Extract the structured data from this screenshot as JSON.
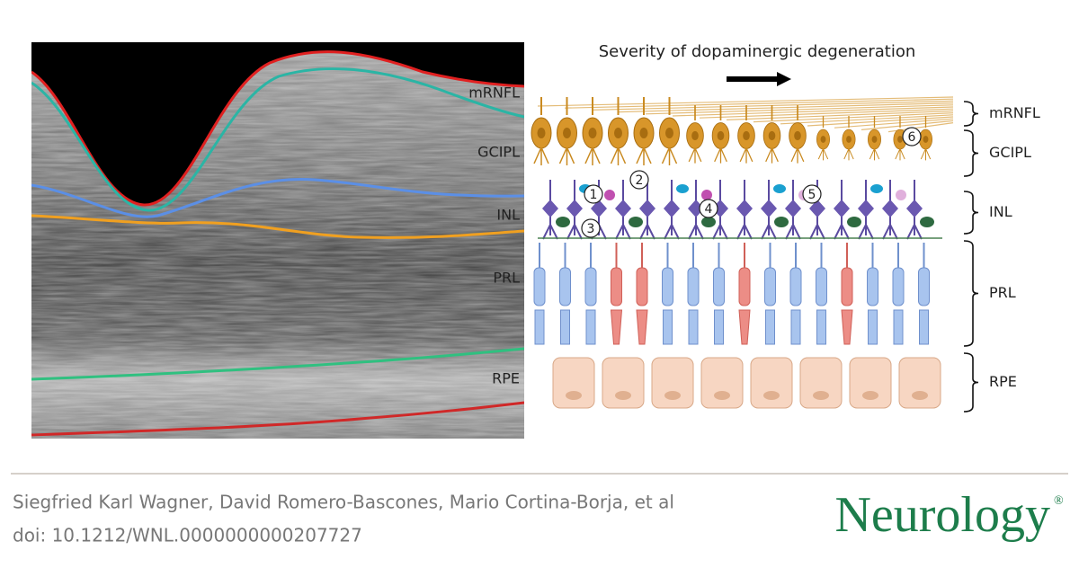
{
  "oct_image": {
    "labels": [
      "mRNFL",
      "GCIPL",
      "INL",
      "PRL",
      "RPE"
    ]
  },
  "diagram": {
    "title": "Severity of dopaminergic degeneration",
    "markers": [
      "1",
      "2",
      "3",
      "4",
      "5",
      "6"
    ],
    "layers": [
      "mRNFL",
      "GCIPL",
      "INL",
      "PRL",
      "RPE"
    ]
  },
  "footer": {
    "authors": "Siegfried Karl Wagner, David Romero-Bascones, Mario Cortina-Borja, et al",
    "doi": "doi: 10.1212/WNL.0000000000207727",
    "journal": "Neurology",
    "mark": "®"
  }
}
